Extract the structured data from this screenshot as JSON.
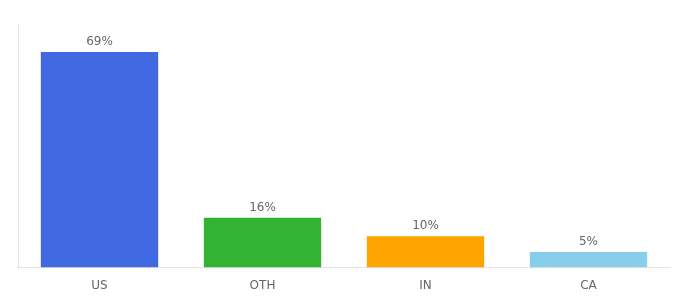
{
  "chart_data": {
    "type": "bar",
    "categories": [
      "US",
      "OTH",
      "IN",
      "CA"
    ],
    "values": [
      69,
      16,
      10,
      5
    ],
    "value_labels": [
      "69%",
      "16%",
      "10%",
      "5%"
    ],
    "colors": [
      "#4169e1",
      "#32b432",
      "#ffa500",
      "#87ceeb"
    ],
    "ylim": [
      0,
      78
    ],
    "data_labels": true,
    "tick_labels": "x",
    "grid": false
  }
}
